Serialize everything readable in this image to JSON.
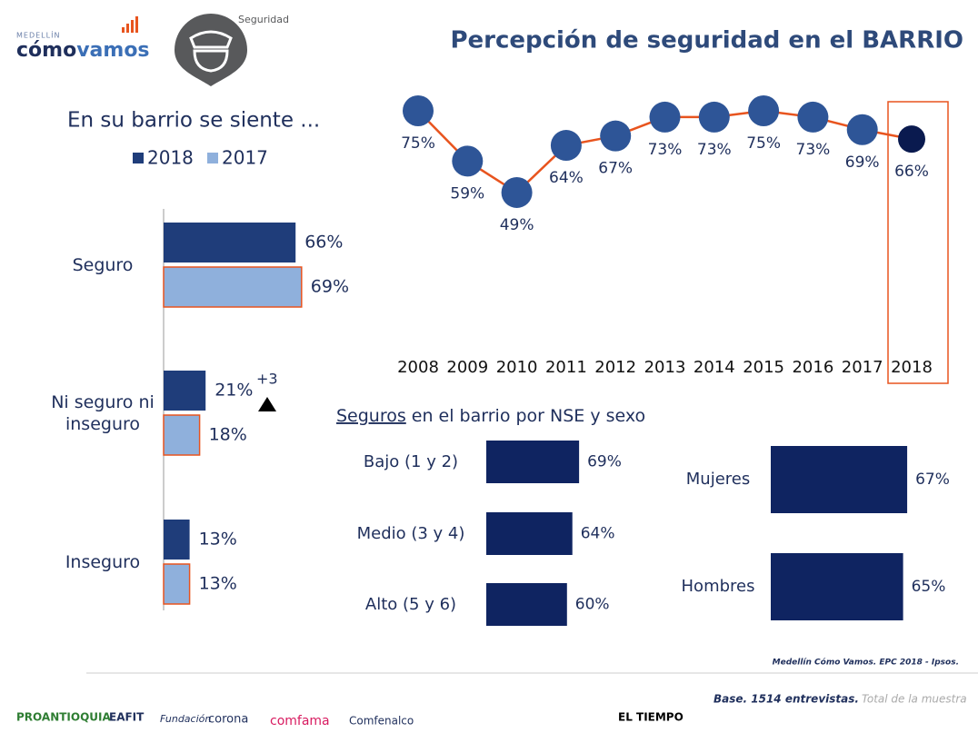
{
  "header": {
    "city": "MEDELLÍN",
    "brand_a": "cómo",
    "brand_b": "vamos",
    "section": "Seguridad"
  },
  "chart_data": [
    {
      "type": "bar",
      "orientation": "horizontal",
      "title": "En su barrio se siente ...",
      "categories": [
        "Seguro",
        "Ni seguro ni inseguro",
        "Inseguro"
      ],
      "series": [
        {
          "name": "2018",
          "color": "#1f3d7a",
          "values": [
            66,
            21,
            13
          ],
          "value_labels": [
            "66%",
            "21%",
            "13%"
          ]
        },
        {
          "name": "2017",
          "color": "#8fb0dc",
          "values": [
            69,
            18,
            13
          ],
          "value_labels": [
            "69%",
            "18%",
            "13%"
          ]
        }
      ],
      "annotation": "+3"
    },
    {
      "type": "line",
      "title": "Percepción de seguridad en el BARRIO",
      "x": [
        2008,
        2009,
        2010,
        2011,
        2012,
        2013,
        2014,
        2015,
        2016,
        2017,
        2018
      ],
      "values": [
        75,
        59,
        49,
        64,
        67,
        73,
        73,
        75,
        73,
        69,
        66
      ],
      "value_labels": [
        "75%",
        "59%",
        "49%",
        "64%",
        "67%",
        "73%",
        "73%",
        "75%",
        "73%",
        "69%",
        "66%"
      ],
      "line_color": "#e8541e",
      "color": "#2e5597",
      "highlight_color": "#0a1a4f"
    },
    {
      "type": "bar",
      "orientation": "horizontal",
      "title": [
        "Seguros",
        "en el barrio por NSE y sexo"
      ],
      "categories": [
        "Bajo (1 y 2)",
        "Medio (3 y 4)",
        "Alto (5 y 6)"
      ],
      "values": [
        69,
        64,
        60
      ],
      "value_labels": [
        "69%",
        "64%",
        "60%"
      ],
      "color": "#0f2461"
    },
    {
      "type": "bar",
      "orientation": "horizontal",
      "categories": [
        "Mujeres",
        "Hombres"
      ],
      "values": [
        67,
        65
      ],
      "value_labels": [
        "67%",
        "65%"
      ],
      "color": "#0f2461"
    }
  ],
  "source": "Medellín Cómo Vamos. EPC 2018 - Ipsos.",
  "base": "Base. 1514 entrevistas.",
  "base_note": "Total de la muestra",
  "footer": [
    "PROANTIOQUIA",
    "EAFIT",
    "Fundación",
    "corona",
    "comfama",
    "Comfenalco",
    "EL TIEMPO"
  ]
}
